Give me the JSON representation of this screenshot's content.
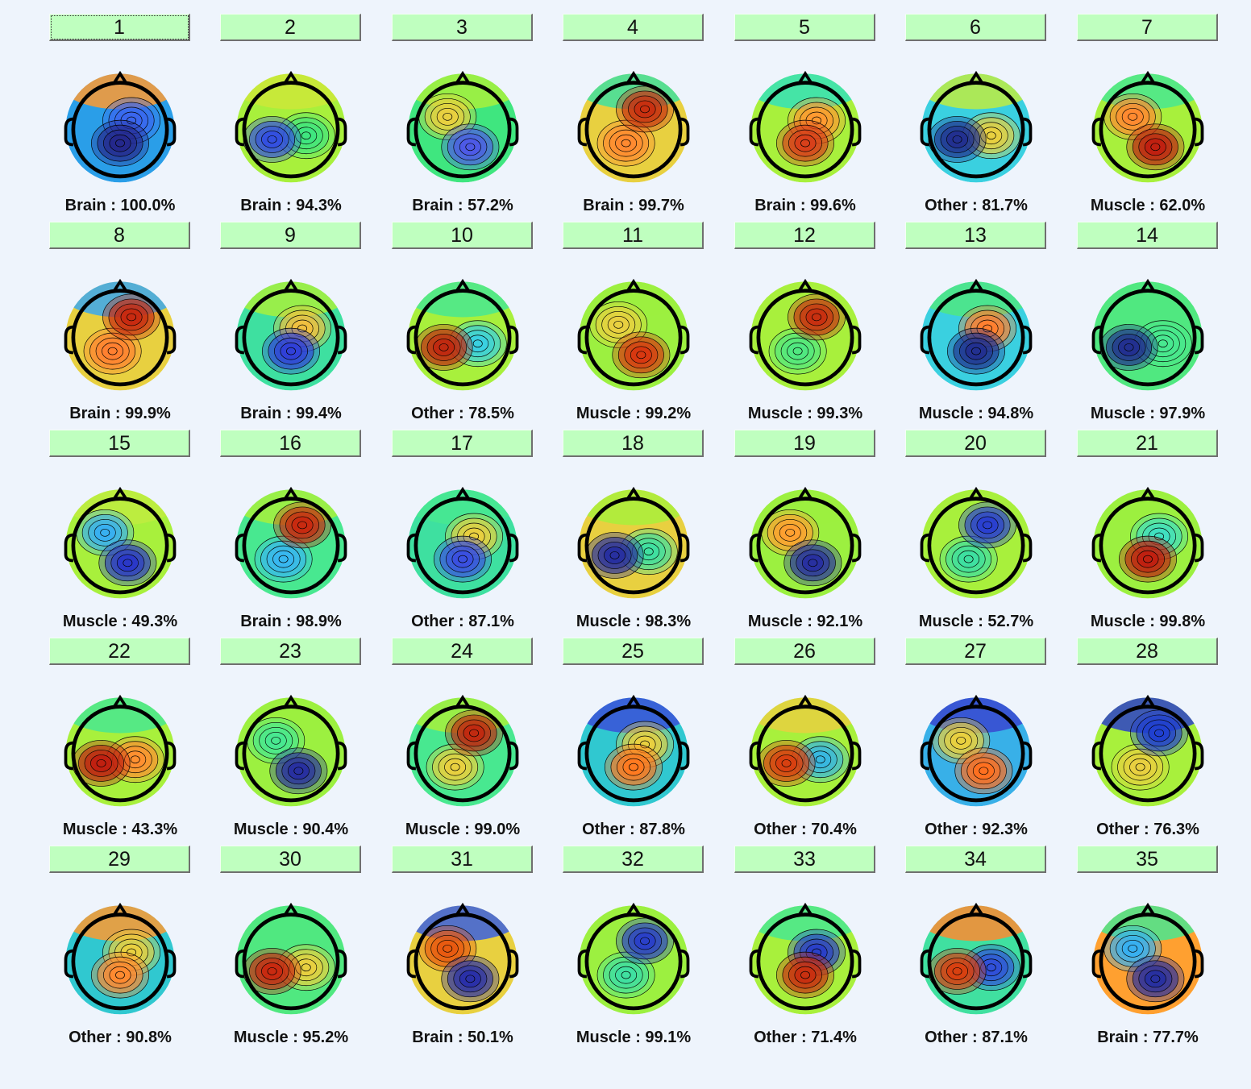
{
  "components": [
    {
      "number": "1",
      "label": "Brain : 100.0%",
      "top_color": "#ff9a30",
      "spots": [
        {
          "c": "#24288c"
        },
        {
          "c": "#3a66ee"
        },
        {
          "c": "#2a9ee8"
        }
      ]
    },
    {
      "number": "2",
      "label": "Brain : 94.3%",
      "top_color": "#cde838",
      "spots": [
        {
          "c": "#3350e0"
        },
        {
          "c": "#3fe67f"
        },
        {
          "c": "#a8f03c"
        }
      ]
    },
    {
      "number": "3",
      "label": "Brain : 57.2%",
      "top_color": "#a8f03c",
      "spots": [
        {
          "c": "#4d5ae6"
        },
        {
          "c": "#e8d040"
        },
        {
          "c": "#3fe67f"
        }
      ]
    },
    {
      "number": "4",
      "label": "Brain : 99.7%",
      "top_color": "#3ee0a0",
      "spots": [
        {
          "c": "#c83010"
        },
        {
          "c": "#ff8a30"
        },
        {
          "c": "#e8d040"
        }
      ]
    },
    {
      "number": "5",
      "label": "Brain : 99.6%",
      "top_color": "#34e2b8",
      "spots": [
        {
          "c": "#d8401a"
        },
        {
          "c": "#ff9a30"
        },
        {
          "c": "#a8f03c"
        }
      ]
    },
    {
      "number": "6",
      "label": "Other : 81.7%",
      "top_color": "#c0ec40",
      "spots": [
        {
          "c": "#223090"
        },
        {
          "c": "#e8d040"
        },
        {
          "c": "#3ad0e0"
        }
      ]
    },
    {
      "number": "7",
      "label": "Muscle : 62.0%",
      "top_color": "#48e890",
      "spots": [
        {
          "c": "#c02010"
        },
        {
          "c": "#ff8a30"
        },
        {
          "c": "#a8f03c"
        }
      ]
    },
    {
      "number": "8",
      "label": "Brain : 99.9%",
      "top_color": "#3aa8f0",
      "spots": [
        {
          "c": "#c82a10"
        },
        {
          "c": "#ff8030"
        },
        {
          "c": "#e8d040"
        }
      ]
    },
    {
      "number": "9",
      "label": "Brain : 99.4%",
      "top_color": "#a8f03c",
      "spots": [
        {
          "c": "#3040d8"
        },
        {
          "c": "#f0c040"
        },
        {
          "c": "#3ee0a0"
        }
      ]
    },
    {
      "number": "10",
      "label": "Other : 78.5%",
      "top_color": "#48e890",
      "spots": [
        {
          "c": "#c02a10"
        },
        {
          "c": "#3ad0e0"
        },
        {
          "c": "#a8f03c"
        }
      ]
    },
    {
      "number": "11",
      "label": "Muscle : 99.2%",
      "top_color": "#9cf040",
      "spots": [
        {
          "c": "#d83810"
        },
        {
          "c": "#e8d040"
        },
        {
          "c": "#9cf040"
        }
      ]
    },
    {
      "number": "12",
      "label": "Muscle : 99.3%",
      "top_color": "#a8f03c",
      "spots": [
        {
          "c": "#c83010"
        },
        {
          "c": "#50e880"
        },
        {
          "c": "#a8f03c"
        }
      ]
    },
    {
      "number": "13",
      "label": "Muscle : 94.8%",
      "top_color": "#50e880",
      "spots": [
        {
          "c": "#223090"
        },
        {
          "c": "#ff8030"
        },
        {
          "c": "#3ad0e0"
        }
      ]
    },
    {
      "number": "14",
      "label": "Muscle : 97.9%",
      "top_color": "#50e880",
      "spots": [
        {
          "c": "#223090"
        },
        {
          "c": "#48e890"
        },
        {
          "c": "#50e880"
        }
      ]
    },
    {
      "number": "15",
      "label": "Muscle : 49.3%",
      "top_color": "#c0ec40",
      "spots": [
        {
          "c": "#2a38c8"
        },
        {
          "c": "#38b0f0"
        },
        {
          "c": "#a8f03c"
        }
      ]
    },
    {
      "number": "16",
      "label": "Brain : 98.9%",
      "top_color": "#a8f03c",
      "spots": [
        {
          "c": "#c82a10"
        },
        {
          "c": "#38b8f0"
        },
        {
          "c": "#48e890"
        }
      ]
    },
    {
      "number": "17",
      "label": "Other : 87.1%",
      "top_color": "#48e890",
      "spots": [
        {
          "c": "#3a50e0"
        },
        {
          "c": "#e8d040"
        },
        {
          "c": "#3ee0a0"
        }
      ]
    },
    {
      "number": "18",
      "label": "Muscle : 98.3%",
      "top_color": "#a8f03c",
      "spots": [
        {
          "c": "#2830a0"
        },
        {
          "c": "#40e0a0"
        },
        {
          "c": "#e8d040"
        }
      ]
    },
    {
      "number": "19",
      "label": "Muscle : 92.1%",
      "top_color": "#9cf040",
      "spots": [
        {
          "c": "#2830a0"
        },
        {
          "c": "#ffa030"
        },
        {
          "c": "#9cf040"
        }
      ]
    },
    {
      "number": "20",
      "label": "Muscle : 52.7%",
      "top_color": "#a8f03c",
      "spots": [
        {
          "c": "#2a40d0"
        },
        {
          "c": "#3ee0a0"
        },
        {
          "c": "#a8f03c"
        }
      ]
    },
    {
      "number": "21",
      "label": "Muscle : 99.8%",
      "top_color": "#9cf040",
      "spots": [
        {
          "c": "#c02010"
        },
        {
          "c": "#40e0c0"
        },
        {
          "c": "#9cf040"
        }
      ]
    },
    {
      "number": "22",
      "label": "Muscle : 43.3%",
      "top_color": "#48e890",
      "spots": [
        {
          "c": "#c02010"
        },
        {
          "c": "#ff9030"
        },
        {
          "c": "#a8f03c"
        }
      ]
    },
    {
      "number": "23",
      "label": "Muscle : 90.4%",
      "top_color": "#9cf040",
      "spots": [
        {
          "c": "#2830a0"
        },
        {
          "c": "#48e890"
        },
        {
          "c": "#9cf040"
        }
      ]
    },
    {
      "number": "24",
      "label": "Muscle : 99.0%",
      "top_color": "#a8f03c",
      "spots": [
        {
          "c": "#c02a10"
        },
        {
          "c": "#e8d040"
        },
        {
          "c": "#48e890"
        }
      ]
    },
    {
      "number": "25",
      "label": "Other : 87.8%",
      "top_color": "#3a50d8",
      "spots": [
        {
          "c": "#ff7a20"
        },
        {
          "c": "#e8d040"
        },
        {
          "c": "#30c8d0"
        }
      ]
    },
    {
      "number": "26",
      "label": "Other : 70.4%",
      "top_color": "#e8d040",
      "spots": [
        {
          "c": "#d84010"
        },
        {
          "c": "#38b8e0"
        },
        {
          "c": "#a8f03c"
        }
      ]
    },
    {
      "number": "27",
      "label": "Other : 92.3%",
      "top_color": "#3848d0",
      "spots": [
        {
          "c": "#ff7020"
        },
        {
          "c": "#e8d040"
        },
        {
          "c": "#38b0e8"
        }
      ]
    },
    {
      "number": "28",
      "label": "Other : 76.3%",
      "top_color": "#2c40c8",
      "spots": [
        {
          "c": "#2040d0"
        },
        {
          "c": "#e8d040"
        },
        {
          "c": "#a8f03c"
        }
      ]
    },
    {
      "number": "29",
      "label": "Other : 90.8%",
      "top_color": "#ff9a30",
      "spots": [
        {
          "c": "#ff8a30"
        },
        {
          "c": "#e8d040"
        },
        {
          "c": "#30c8d0"
        }
      ]
    },
    {
      "number": "30",
      "label": "Muscle : 95.2%",
      "top_color": "#50e880",
      "spots": [
        {
          "c": "#c82a10"
        },
        {
          "c": "#e8d040"
        },
        {
          "c": "#50e880"
        }
      ]
    },
    {
      "number": "31",
      "label": "Brain : 50.1%",
      "top_color": "#3a60e0",
      "spots": [
        {
          "c": "#2a30a8"
        },
        {
          "c": "#e85a10"
        },
        {
          "c": "#e8d040"
        }
      ]
    },
    {
      "number": "32",
      "label": "Muscle : 99.1%",
      "top_color": "#9cf040",
      "spots": [
        {
          "c": "#2a40c8"
        },
        {
          "c": "#40e0a0"
        },
        {
          "c": "#9cf040"
        }
      ]
    },
    {
      "number": "33",
      "label": "Other : 71.4%",
      "top_color": "#48e890",
      "spots": [
        {
          "c": "#c83010"
        },
        {
          "c": "#2a40c8"
        },
        {
          "c": "#a8f03c"
        }
      ]
    },
    {
      "number": "34",
      "label": "Other : 87.1%",
      "top_color": "#ff8a30",
      "spots": [
        {
          "c": "#d84010"
        },
        {
          "c": "#3050d8"
        },
        {
          "c": "#40e0a0"
        }
      ]
    },
    {
      "number": "35",
      "label": "Brain : 77.7%",
      "top_color": "#48e890",
      "spots": [
        {
          "c": "#2830a0"
        },
        {
          "c": "#38b0f0"
        },
        {
          "c": "#ffa030"
        }
      ]
    }
  ]
}
